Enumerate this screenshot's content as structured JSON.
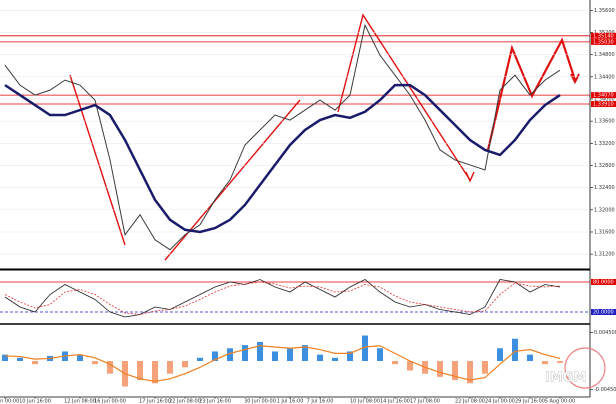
{
  "chart_data": [
    {
      "type": "line",
      "ylim": [
        1.3095,
        1.3575
      ],
      "yticks": [
        {
          "value": 1.356,
          "label": "1.35600"
        },
        {
          "value": 1.352,
          "label": "1.35200"
        },
        {
          "value": 1.348,
          "label": "1.34800"
        },
        {
          "value": 1.344,
          "label": "1.34400"
        },
        {
          "value": 1.34,
          "label": "1.34000"
        },
        {
          "value": 1.336,
          "label": "1.33600"
        },
        {
          "value": 1.332,
          "label": "1.33200"
        },
        {
          "value": 1.328,
          "label": "1.32800"
        },
        {
          "value": 1.324,
          "label": "1.32400"
        },
        {
          "value": 1.32,
          "label": "1.32000"
        },
        {
          "value": 1.316,
          "label": "1.31600"
        },
        {
          "value": 1.312,
          "label": "1.31200"
        }
      ],
      "levels": [
        {
          "value": 1.3514,
          "label": "1.35140",
          "color": "#e00000"
        },
        {
          "value": 1.3503,
          "label": "1.35030",
          "color": "#e00000"
        },
        {
          "value": 1.3407,
          "label": "1.34070",
          "color": "#e00000"
        },
        {
          "value": 1.3391,
          "label": "1.33910",
          "color": "#e00000"
        }
      ],
      "series": [
        {
          "color": "#3a3a3a",
          "width": 1,
          "values": [
            1.3461,
            1.3425,
            1.3407,
            1.3416,
            1.3434,
            1.3425,
            1.3398,
            1.329,
            1.3155,
            1.3191,
            1.3146,
            1.3128,
            1.3155,
            1.3173,
            1.3218,
            1.3254,
            1.3317,
            1.3344,
            1.3371,
            1.3362,
            1.338,
            1.3398,
            1.338,
            1.3407,
            1.3533,
            1.3479,
            1.3443,
            1.3407,
            1.3362,
            1.3308,
            1.329,
            1.3281,
            1.3272,
            1.3416,
            1.3443,
            1.3407,
            1.3434,
            1.3452
          ]
        },
        {
          "color": "#1b1b6b",
          "width": 2.5,
          "values": [
            1.3425,
            1.3407,
            1.3389,
            1.3371,
            1.3371,
            1.338,
            1.3389,
            1.3371,
            1.3326,
            1.3272,
            1.3218,
            1.3182,
            1.3164,
            1.316,
            1.3167,
            1.3182,
            1.3209,
            1.3245,
            1.3281,
            1.3317,
            1.3344,
            1.3362,
            1.3371,
            1.3366,
            1.3377,
            1.3398,
            1.3425,
            1.3425,
            1.3407,
            1.338,
            1.3353,
            1.3326,
            1.3308,
            1.3299,
            1.3326,
            1.3362,
            1.3389,
            1.3407
          ]
        }
      ]
    },
    {
      "type": "line",
      "ylim": [
        0,
        100
      ],
      "levels": [
        {
          "value": 80,
          "label": "80.0000",
          "color": "#e00000"
        },
        {
          "value": 20,
          "label": "20.0000",
          "color": "#2020c0"
        }
      ],
      "series": [
        {
          "color": "#222222",
          "width": 0.8,
          "values": [
            50,
            30,
            20,
            55,
            75,
            60,
            45,
            20,
            10,
            15,
            30,
            25,
            40,
            55,
            70,
            80,
            75,
            85,
            70,
            60,
            80,
            65,
            50,
            70,
            85,
            60,
            40,
            30,
            35,
            25,
            20,
            15,
            30,
            85,
            80,
            60,
            75,
            70
          ]
        },
        {
          "color": "#e03030",
          "width": 0.8,
          "dash": true,
          "values": [
            55,
            40,
            28,
            35,
            60,
            65,
            55,
            35,
            18,
            15,
            22,
            25,
            32,
            45,
            60,
            72,
            76,
            80,
            76,
            68,
            72,
            70,
            60,
            62,
            75,
            70,
            52,
            40,
            35,
            30,
            25,
            20,
            22,
            55,
            78,
            72,
            70,
            72
          ]
        }
      ]
    },
    {
      "type": "bar",
      "ylim": [
        -0.0055,
        0.0055
      ],
      "yticks": [
        {
          "value": 0.0045,
          "label": "0.004500"
        },
        {
          "value": -0.0045,
          "label": "-0.004500"
        }
      ],
      "series": [
        {
          "color": "#3d8fe0",
          "negative_color": "#f5a27a",
          "values": [
            0.001,
            0.0005,
            -0.0005,
            0.0008,
            0.0015,
            0.001,
            -0.0005,
            -0.002,
            -0.004,
            -0.003,
            -0.0035,
            -0.002,
            -0.001,
            0.0005,
            0.0015,
            0.002,
            0.0025,
            0.003,
            0.0015,
            0.002,
            0.0025,
            0.001,
            0.0005,
            0.0015,
            0.004,
            0.002,
            -0.0005,
            -0.0015,
            -0.002,
            -0.0025,
            -0.003,
            -0.0035,
            -0.002,
            0.002,
            0.0035,
            0.001,
            -0.0005,
            -0.0003
          ]
        },
        {
          "type": "line",
          "color": "#f08020",
          "width": 1.2,
          "values": [
            0.0008,
            0.0007,
            0.0003,
            0.0004,
            0.0008,
            0.001,
            0.0005,
            -0.0005,
            -0.002,
            -0.0028,
            -0.0032,
            -0.0028,
            -0.002,
            -0.001,
            0.0002,
            0.0012,
            0.0018,
            0.0024,
            0.0022,
            0.002,
            0.0022,
            0.0018,
            0.0012,
            0.0012,
            0.0022,
            0.0024,
            0.0012,
            0,
            -0.001,
            -0.0018,
            -0.0024,
            -0.003,
            -0.0026,
            -0.0005,
            0.0015,
            0.0018,
            0.001,
            0.0004
          ]
        }
      ],
      "categories": [
        "9 Jun 00:00",
        null,
        "10 Jun 16:00",
        null,
        null,
        "12 Jun 08:00",
        null,
        "16 Jun 00:00",
        null,
        null,
        "17 Jun 16:00",
        null,
        "22 Jun 08:00",
        null,
        "23 Jun 16:00",
        null,
        null,
        "30 Jun 00:00",
        null,
        "1 Jul 16:00",
        null,
        "7 Jul 16:00",
        null,
        null,
        "10 Jul 08:00",
        null,
        "14 Jul 16:00",
        null,
        "17 Jul 08:00",
        null,
        null,
        "22 Jul 08:00",
        null,
        "24 Jul 00:00",
        null,
        "29 Jul 16:00",
        null,
        "5 Aug 00:00"
      ]
    }
  ],
  "watermark": "IMGM"
}
